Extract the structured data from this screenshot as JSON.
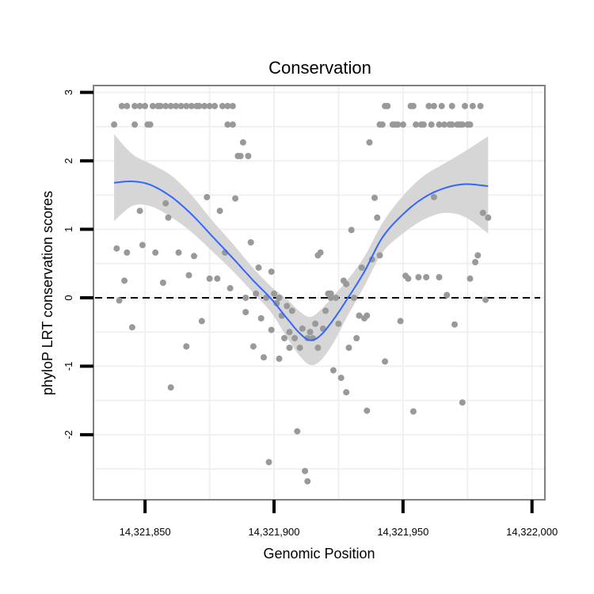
{
  "chart_data": {
    "type": "scatter",
    "title": "Conservation",
    "xlabel": "Genomic Position",
    "ylabel": "phyloP LRT conservation scores",
    "xlim": [
      14321830,
      14322005
    ],
    "ylim": [
      -2.95,
      3.1
    ],
    "x_ticks": [
      14321850,
      14321900,
      14321950,
      14322000
    ],
    "x_tick_labels": [
      "14,321,850",
      "14,321,900",
      "14,321,950",
      "14,322,000"
    ],
    "y_ticks": [
      -2,
      -1,
      0,
      1,
      2,
      3
    ],
    "y_tick_labels": [
      "-2",
      "-1",
      "0",
      "1",
      "2",
      "3"
    ],
    "reference_line": {
      "y": 0,
      "style": "dashed"
    },
    "points": [
      [
        14321838,
        2.53
      ],
      [
        14321839,
        0.72
      ],
      [
        14321840,
        -0.04
      ],
      [
        14321841,
        2.8
      ],
      [
        14321842,
        0.25
      ],
      [
        14321843,
        0.66
      ],
      [
        14321843,
        2.8
      ],
      [
        14321845,
        -0.43
      ],
      [
        14321846,
        2.8
      ],
      [
        14321846,
        2.53
      ],
      [
        14321848,
        2.8
      ],
      [
        14321848,
        1.27
      ],
      [
        14321849,
        0.77
      ],
      [
        14321850,
        2.8
      ],
      [
        14321851,
        2.53
      ],
      [
        14321852,
        2.53
      ],
      [
        14321853,
        2.8
      ],
      [
        14321854,
        0.66
      ],
      [
        14321855,
        2.8
      ],
      [
        14321856,
        2.8
      ],
      [
        14321857,
        0.22
      ],
      [
        14321858,
        2.8
      ],
      [
        14321858,
        1.38
      ],
      [
        14321859,
        1.17
      ],
      [
        14321860,
        -1.31
      ],
      [
        14321860,
        2.8
      ],
      [
        14321862,
        2.8
      ],
      [
        14321863,
        0.66
      ],
      [
        14321864,
        2.8
      ],
      [
        14321866,
        2.8
      ],
      [
        14321866,
        -0.71
      ],
      [
        14321867,
        0.33
      ],
      [
        14321868,
        2.8
      ],
      [
        14321869,
        0.61
      ],
      [
        14321870,
        2.8
      ],
      [
        14321871,
        2.8
      ],
      [
        14321872,
        -0.34
      ],
      [
        14321873,
        2.8
      ],
      [
        14321874,
        1.47
      ],
      [
        14321875,
        0.28
      ],
      [
        14321875,
        2.8
      ],
      [
        14321877,
        2.8
      ],
      [
        14321878,
        0.28
      ],
      [
        14321879,
        1.27
      ],
      [
        14321880,
        2.8
      ],
      [
        14321881,
        0.66
      ],
      [
        14321882,
        2.8
      ],
      [
        14321882,
        2.53
      ],
      [
        14321883,
        0.14
      ],
      [
        14321884,
        2.8
      ],
      [
        14321884,
        2.53
      ],
      [
        14321885,
        1.45
      ],
      [
        14321886,
        2.07
      ],
      [
        14321887,
        2.07
      ],
      [
        14321888,
        2.27
      ],
      [
        14321889,
        0.0
      ],
      [
        14321889,
        -0.21
      ],
      [
        14321890,
        2.07
      ],
      [
        14321891,
        0.81
      ],
      [
        14321892,
        -0.71
      ],
      [
        14321893,
        0.06
      ],
      [
        14321894,
        0.44
      ],
      [
        14321895,
        -0.3
      ],
      [
        14321896,
        -0.87
      ],
      [
        14321897,
        0.0
      ],
      [
        14321898,
        -2.4
      ],
      [
        14321899,
        0.38
      ],
      [
        14321899,
        -0.47
      ],
      [
        14321900,
        0.06
      ],
      [
        14321901,
        -0.08
      ],
      [
        14321902,
        0.0
      ],
      [
        14321902,
        -0.89
      ],
      [
        14321903,
        -0.26
      ],
      [
        14321904,
        -0.59
      ],
      [
        14321905,
        -0.12
      ],
      [
        14321906,
        -0.5
      ],
      [
        14321906,
        -0.73
      ],
      [
        14321907,
        -0.19
      ],
      [
        14321908,
        -0.59
      ],
      [
        14321909,
        -1.95
      ],
      [
        14321910,
        -0.73
      ],
      [
        14321911,
        -0.45
      ],
      [
        14321912,
        -2.53
      ],
      [
        14321913,
        -2.68
      ],
      [
        14321913,
        -0.59
      ],
      [
        14321914,
        -0.5
      ],
      [
        14321915,
        -0.59
      ],
      [
        14321916,
        -0.38
      ],
      [
        14321917,
        -0.73
      ],
      [
        14321917,
        0.62
      ],
      [
        14321918,
        0.66
      ],
      [
        14321919,
        -0.45
      ],
      [
        14321920,
        -0.19
      ],
      [
        14321921,
        0.06
      ],
      [
        14321922,
        0.0
      ],
      [
        14321922,
        0.06
      ],
      [
        14321923,
        -1.06
      ],
      [
        14321924,
        0.0
      ],
      [
        14321925,
        -0.38
      ],
      [
        14321926,
        -1.17
      ],
      [
        14321927,
        0.25
      ],
      [
        14321928,
        -1.38
      ],
      [
        14321928,
        0.2
      ],
      [
        14321929,
        -0.73
      ],
      [
        14321930,
        0.99
      ],
      [
        14321931,
        0.0
      ],
      [
        14321932,
        -0.59
      ],
      [
        14321933,
        -0.26
      ],
      [
        14321934,
        0.44
      ],
      [
        14321935,
        -0.3
      ],
      [
        14321936,
        -1.65
      ],
      [
        14321936,
        -0.26
      ],
      [
        14321937,
        2.27
      ],
      [
        14321938,
        0.56
      ],
      [
        14321939,
        1.46
      ],
      [
        14321940,
        1.17
      ],
      [
        14321941,
        0.62
      ],
      [
        14321941,
        2.53
      ],
      [
        14321942,
        2.53
      ],
      [
        14321943,
        -0.93
      ],
      [
        14321943,
        2.8
      ],
      [
        14321944,
        2.8
      ],
      [
        14321946,
        2.53
      ],
      [
        14321947,
        2.53
      ],
      [
        14321948,
        2.53
      ],
      [
        14321949,
        -0.34
      ],
      [
        14321950,
        2.53
      ],
      [
        14321951,
        0.32
      ],
      [
        14321952,
        0.28
      ],
      [
        14321953,
        2.8
      ],
      [
        14321954,
        2.8
      ],
      [
        14321954,
        -1.66
      ],
      [
        14321955,
        2.53
      ],
      [
        14321956,
        0.3
      ],
      [
        14321957,
        2.53
      ],
      [
        14321958,
        2.53
      ],
      [
        14321959,
        0.3
      ],
      [
        14321960,
        2.8
      ],
      [
        14321961,
        2.53
      ],
      [
        14321962,
        1.47
      ],
      [
        14321962,
        2.8
      ],
      [
        14321964,
        2.53
      ],
      [
        14321964,
        0.3
      ],
      [
        14321965,
        2.8
      ],
      [
        14321966,
        2.53
      ],
      [
        14321967,
        0.04
      ],
      [
        14321968,
        2.53
      ],
      [
        14321969,
        2.8
      ],
      [
        14321969,
        2.53
      ],
      [
        14321970,
        -0.39
      ],
      [
        14321971,
        2.53
      ],
      [
        14321972,
        2.53
      ],
      [
        14321973,
        -1.53
      ],
      [
        14321973,
        2.53
      ],
      [
        14321974,
        2.8
      ],
      [
        14321975,
        2.53
      ],
      [
        14321976,
        0.28
      ],
      [
        14321976,
        2.53
      ],
      [
        14321977,
        2.8
      ],
      [
        14321978,
        0.52
      ],
      [
        14321979,
        0.62
      ],
      [
        14321980,
        2.8
      ],
      [
        14321981,
        1.24
      ],
      [
        14321982,
        -0.03
      ],
      [
        14321983,
        1.17
      ]
    ],
    "smooth": {
      "method": "loess",
      "x": [
        14321838,
        14321845,
        14321852,
        14321860,
        14321868,
        14321876,
        14321884,
        14321892,
        14321899,
        14321905,
        14321910,
        14321914,
        14321918,
        14321923,
        14321928,
        14321935,
        14321942,
        14321950,
        14321958,
        14321966,
        14321974,
        14321983
      ],
      "fit": [
        1.68,
        1.7,
        1.65,
        1.48,
        1.22,
        0.9,
        0.58,
        0.25,
        -0.02,
        -0.3,
        -0.52,
        -0.62,
        -0.55,
        -0.32,
        -0.04,
        0.38,
        0.88,
        1.22,
        1.46,
        1.6,
        1.66,
        1.63
      ],
      "lower": [
        1.12,
        1.34,
        1.34,
        1.18,
        0.96,
        0.68,
        0.39,
        0.07,
        -0.22,
        -0.58,
        -0.85,
        -0.98,
        -0.92,
        -0.66,
        -0.3,
        0.17,
        0.66,
        0.94,
        1.14,
        1.24,
        1.18,
        0.94
      ],
      "upper": [
        2.39,
        2.1,
        1.96,
        1.79,
        1.5,
        1.13,
        0.79,
        0.43,
        0.16,
        -0.02,
        -0.2,
        -0.28,
        -0.18,
        0.03,
        0.24,
        0.6,
        1.09,
        1.49,
        1.78,
        1.96,
        2.14,
        2.36
      ]
    },
    "colors": {
      "points": "#999999",
      "line": "#3366ff",
      "ribbon": "#d6d6d6",
      "panel_border": "#808080",
      "grid": "#f0f0f0",
      "reference": "#000000"
    }
  }
}
